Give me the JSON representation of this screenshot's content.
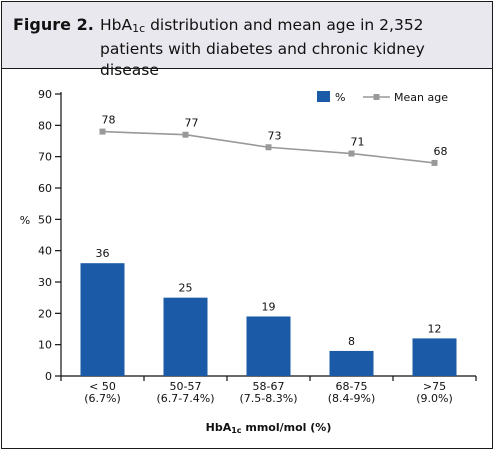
{
  "figure": {
    "label": "Figure 2.",
    "title_prefix": "HbA",
    "title_sub": "1c",
    "title_rest": " distribution and mean age in 2,352 patients with diabetes and chronic kidney disease"
  },
  "chart_data": {
    "type": "bar",
    "categories": [
      "< 50\n(6.7%)",
      "50-57\n(6.7-7.4%)",
      "58-67\n(7.5-8.3%)",
      "68-75\n(8.4-9%)",
      ">75\n(9.0%)"
    ],
    "series": [
      {
        "name": "%",
        "type": "bar",
        "values": [
          36,
          25,
          19,
          8,
          12
        ],
        "color": "#1a5aa6"
      },
      {
        "name": "Mean age",
        "type": "line",
        "values": [
          78,
          77,
          73,
          71,
          68
        ],
        "color": "#999999"
      }
    ],
    "xlabel_prefix": "HbA",
    "xlabel_sub": "1c",
    "xlabel_rest": " mmol/mol (%)",
    "ylabel": "%",
    "ylim": [
      0,
      90
    ],
    "yticks": [
      0,
      10,
      20,
      30,
      40,
      50,
      60,
      70,
      80,
      90
    ],
    "grid": false,
    "legend_placement": "top-right"
  }
}
